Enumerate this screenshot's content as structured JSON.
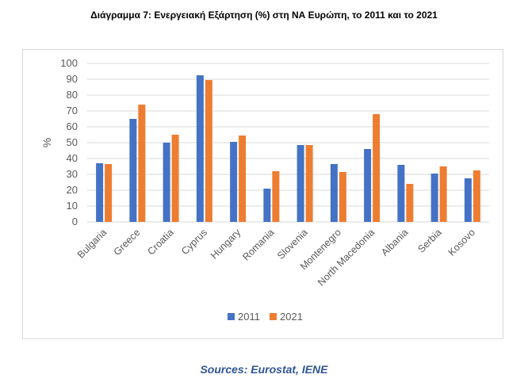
{
  "title": "Διάγραμμα 7: Ενεργειακή Εξάρτηση (%) στη ΝΑ Ευρώπη, το 2011 και το 2021",
  "source": "Sources: Eurostat, IENE",
  "colors": {
    "s2011": "#4472c4",
    "s2021": "#ed7d31",
    "grid": "#d9d9d9",
    "axis_text": "#595959"
  },
  "chart_data": {
    "type": "bar",
    "title": "",
    "ylabel": "%",
    "xlabel": "",
    "ylim": [
      0,
      100
    ],
    "yticks": [
      0,
      10,
      20,
      30,
      40,
      50,
      60,
      70,
      80,
      90,
      100
    ],
    "grid": true,
    "legend_position": "bottom",
    "categories": [
      "Bulgaria",
      "Greece",
      "Croatia",
      "Cyprus",
      "Hungary",
      "Romania",
      "Slovenia",
      "Montenegro",
      "North Macedonia",
      "Albania",
      "Serbia",
      "Kosovo"
    ],
    "series": [
      {
        "name": "2011",
        "values": [
          37,
          65,
          50,
          92.5,
          50.5,
          21,
          48.5,
          36.5,
          46,
          36,
          30.5,
          27.5
        ]
      },
      {
        "name": "2021",
        "values": [
          36.5,
          74,
          55,
          89.5,
          54.5,
          32,
          48.5,
          31.5,
          68,
          24,
          35,
          32.5
        ]
      }
    ]
  }
}
